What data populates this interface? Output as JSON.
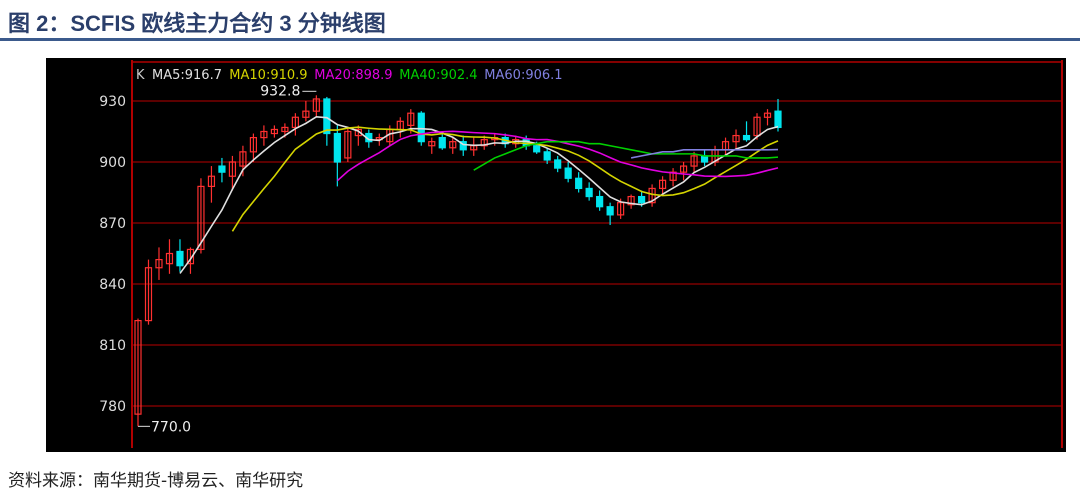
{
  "title": "图 2：SCFIS 欧线主力合约 3 分钟线图",
  "source": "资料来源：南华期货-博易云、南华研究",
  "chart_data": {
    "type": "candlestick",
    "legend": {
      "k": "K",
      "items": [
        {
          "label": "MA5:916.7",
          "color": "#e0e0e0"
        },
        {
          "label": "MA10:910.9",
          "color": "#d4d400"
        },
        {
          "label": "MA20:898.9",
          "color": "#e000e0"
        },
        {
          "label": "MA40:902.4",
          "color": "#00d000"
        },
        {
          "label": "MA60:906.1",
          "color": "#8080e0"
        }
      ]
    },
    "yticks": [
      930,
      900,
      870,
      840,
      810,
      780
    ],
    "ylim": [
      765,
      942
    ],
    "grid": true,
    "colors": {
      "up": "#ff3030",
      "down": "#00e5ee",
      "bg": "#000000",
      "grid": "#7a0000",
      "axis": "#b00000"
    },
    "annotations": {
      "high": "932.8",
      "low": "770.0"
    },
    "candles": [
      [
        776,
        823,
        770,
        822
      ],
      [
        822,
        852,
        820,
        848
      ],
      [
        848,
        858,
        842,
        852
      ],
      [
        850,
        862,
        845,
        855
      ],
      [
        856,
        862,
        846,
        849
      ],
      [
        850,
        858,
        845,
        857
      ],
      [
        857,
        892,
        855,
        888
      ],
      [
        888,
        898,
        880,
        893
      ],
      [
        898,
        902,
        890,
        895
      ],
      [
        893,
        903,
        886,
        900
      ],
      [
        898,
        908,
        893,
        905
      ],
      [
        905,
        914,
        900,
        912
      ],
      [
        912,
        918,
        908,
        915
      ],
      [
        914,
        918,
        912,
        916
      ],
      [
        915,
        919,
        912,
        917
      ],
      [
        917,
        924,
        913,
        922
      ],
      [
        922,
        930,
        920,
        925
      ],
      [
        925,
        932.8,
        922,
        931
      ],
      [
        931,
        932,
        908,
        914
      ],
      [
        914,
        918,
        888,
        900
      ],
      [
        902,
        917,
        900,
        915
      ],
      [
        913,
        918,
        908,
        916
      ],
      [
        914,
        916,
        907,
        910
      ],
      [
        911,
        914,
        908,
        912
      ],
      [
        910,
        918,
        908,
        916
      ],
      [
        916,
        922,
        912,
        920
      ],
      [
        918,
        926,
        914,
        924
      ],
      [
        924,
        925,
        908,
        910
      ],
      [
        908,
        912,
        904,
        910
      ],
      [
        912,
        914,
        906,
        907
      ],
      [
        907,
        912,
        904,
        910
      ],
      [
        910,
        913,
        903,
        906
      ],
      [
        906,
        912,
        903,
        908
      ],
      [
        908,
        913,
        906,
        911
      ],
      [
        911,
        914,
        908,
        912
      ],
      [
        912,
        914,
        907,
        909
      ],
      [
        909,
        913,
        907,
        911
      ],
      [
        911,
        913,
        906,
        908
      ],
      [
        908,
        910,
        904,
        905
      ],
      [
        905,
        907,
        899,
        901
      ],
      [
        901,
        903,
        895,
        897
      ],
      [
        897,
        900,
        890,
        892
      ],
      [
        892,
        895,
        885,
        887
      ],
      [
        887,
        890,
        881,
        883
      ],
      [
        883,
        886,
        876,
        878
      ],
      [
        878,
        880,
        869,
        874
      ],
      [
        874,
        882,
        872,
        880
      ],
      [
        879,
        884,
        877,
        883
      ],
      [
        883,
        886,
        878,
        880
      ],
      [
        880,
        889,
        878,
        887
      ],
      [
        887,
        893,
        884,
        891
      ],
      [
        891,
        897,
        888,
        895
      ],
      [
        895,
        900,
        891,
        898
      ],
      [
        898,
        905,
        895,
        903
      ],
      [
        903,
        906,
        898,
        900
      ],
      [
        900,
        908,
        898,
        906
      ],
      [
        906,
        912,
        903,
        910
      ],
      [
        910,
        916,
        906,
        913
      ],
      [
        913,
        920,
        910,
        911
      ],
      [
        913,
        924,
        911,
        922
      ],
      [
        922,
        926,
        918,
        924
      ],
      [
        925,
        931,
        915,
        917
      ]
    ],
    "ma40": {
      "start": 32,
      "values": [
        896,
        899,
        902,
        904,
        906,
        908,
        909,
        910,
        910,
        910,
        910,
        909,
        909,
        908,
        907,
        906,
        905,
        904,
        904,
        904,
        904,
        904,
        903,
        903,
        903,
        903,
        902,
        902,
        902,
        902.4
      ]
    },
    "ma60": {
      "start": 47,
      "values": [
        902,
        903,
        904,
        905,
        905,
        906,
        906,
        906,
        906,
        906,
        906,
        906,
        906,
        906,
        906.1
      ]
    }
  }
}
